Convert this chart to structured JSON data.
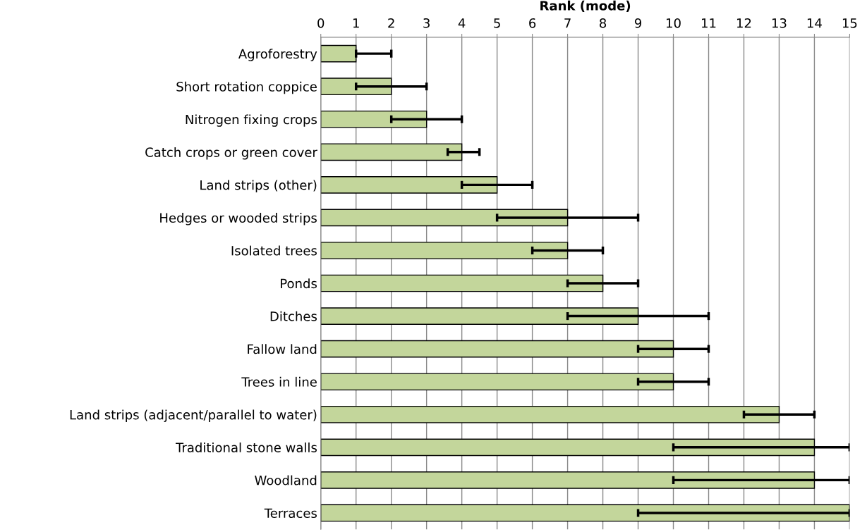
{
  "chart_data": {
    "type": "bar",
    "orientation": "horizontal",
    "xlabel": "Rank (mode)",
    "categories": [
      "Agroforestry",
      "Short rotation coppice",
      "Nitrogen fixing crops",
      "Catch crops or green cover",
      "Land strips (other)",
      "Hedges or wooded strips",
      "Isolated trees",
      "Ponds",
      "Ditches",
      "Fallow land",
      "Trees in line",
      "Land strips (adjacent/parallel to water)",
      "Traditional stone walls",
      "Woodland",
      "Terraces"
    ],
    "values": [
      1,
      2,
      3,
      4,
      5,
      7,
      7,
      8,
      9,
      10,
      10,
      13,
      14,
      14,
      15
    ],
    "errors": [
      [
        1,
        2
      ],
      [
        1,
        3
      ],
      [
        2,
        4
      ],
      [
        3.6,
        4.5
      ],
      [
        4,
        6
      ],
      [
        5,
        9
      ],
      [
        6,
        8
      ],
      [
        7,
        9
      ],
      [
        7,
        11
      ],
      [
        9,
        11
      ],
      [
        9,
        11
      ],
      [
        12,
        14
      ],
      [
        10,
        15
      ],
      [
        10,
        15
      ],
      [
        9,
        15
      ]
    ],
    "color": "#c3d69b",
    "xlim": [
      0,
      15
    ],
    "xticks": [
      0,
      1,
      2,
      3,
      4,
      5,
      6,
      7,
      8,
      9,
      10,
      11,
      12,
      13,
      14,
      15
    ],
    "grid": "x",
    "legend": false
  }
}
